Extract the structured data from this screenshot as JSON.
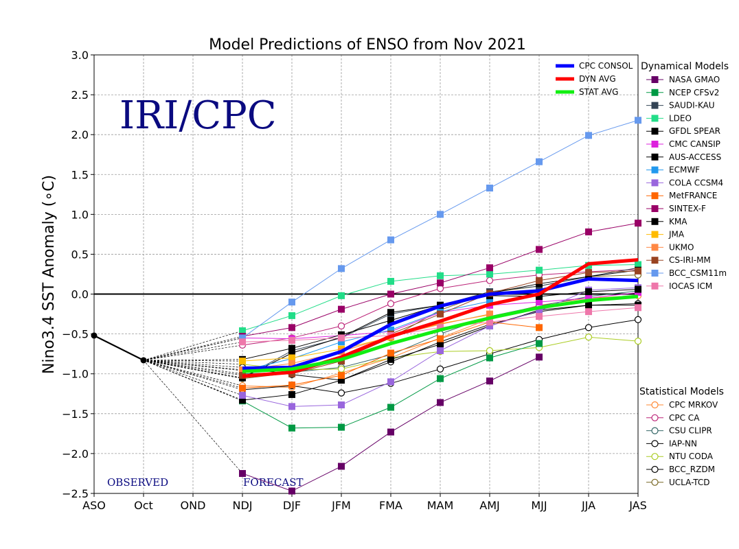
{
  "chart_data": {
    "type": "line",
    "title": "Model Predictions of ENSO from Nov 2021",
    "ylabel": "Nino3.4 SST Anomaly (∘C)",
    "watermark": "IRI/CPC",
    "observed_label": "OBSERVED",
    "forecast_label": "FORECAST",
    "categories": [
      "ASO",
      "Oct",
      "OND",
      "NDJ",
      "DJF",
      "JFM",
      "FMA",
      "MAM",
      "AMJ",
      "MJJ",
      "JJA",
      "JAS"
    ],
    "ylim": [
      -2.5,
      3.0
    ],
    "yticks": [
      -2.5,
      -2.0,
      -1.5,
      -1.0,
      -0.5,
      0.0,
      0.5,
      1.0,
      1.5,
      2.0,
      2.5,
      3.0
    ],
    "ytick_labels": [
      "−2.5",
      "−2.0",
      "−1.5",
      "−1.0",
      "−0.5",
      "0.0",
      "0.5",
      "1.0",
      "1.5",
      "2.0",
      "2.5",
      "3.0"
    ],
    "grid": true,
    "observed": {
      "values": [
        -0.52,
        -0.83
      ],
      "color": "#000000"
    },
    "averages_legend_position": "top-right",
    "averages": [
      {
        "name": "CPC CONSOL",
        "color": "#0000ff",
        "values": [
          -0.93,
          -0.92,
          -0.72,
          -0.38,
          -0.15,
          0.0,
          0.04,
          0.19,
          0.17
        ]
      },
      {
        "name": "DYN AVG",
        "color": "#ff0000",
        "values": [
          -1.03,
          -0.98,
          -0.79,
          -0.53,
          -0.34,
          -0.13,
          0.0,
          0.38,
          0.43
        ]
      },
      {
        "name": "STAT AVG",
        "color": "#11ee11",
        "values": [
          -0.97,
          -0.94,
          -0.82,
          -0.62,
          -0.45,
          -0.3,
          -0.17,
          -0.08,
          -0.03
        ]
      }
    ],
    "dynamical_title": "Dynamical Models",
    "dynamical": [
      {
        "name": "NASA GMAO",
        "color": "#660066",
        "values": [
          -2.25,
          -2.47,
          -2.16,
          -1.73,
          -1.36,
          -1.09,
          -0.79
        ]
      },
      {
        "name": "NCEP CFSv2",
        "color": "#009944",
        "values": [
          -1.34,
          -1.68,
          -1.67,
          -1.42,
          -1.06,
          -0.8,
          -0.62
        ]
      },
      {
        "name": "SAUDI-KAU",
        "color": "#334455",
        "values": [
          -1.05,
          -0.71,
          -0.55,
          -0.25,
          -0.14,
          0.03,
          0.1,
          0.22,
          0.33
        ]
      },
      {
        "name": "LDEO",
        "color": "#22dd88",
        "values": [
          -0.46,
          -0.27,
          -0.02,
          0.16,
          0.23,
          0.25,
          0.3,
          0.36,
          0.37
        ]
      },
      {
        "name": "GFDL SPEAR",
        "color": "#000000",
        "values": [
          -1.05,
          -0.74,
          -0.54,
          -0.23,
          -0.14,
          0.01,
          0.13,
          0.22,
          0.3
        ]
      },
      {
        "name": "CMC CANSIP",
        "color": "#dd22dd",
        "values": [
          -0.55,
          -0.56,
          -0.52,
          -0.47,
          -0.23,
          -0.14,
          -0.1,
          -0.05,
          0.02
        ]
      },
      {
        "name": "AUS-ACCESS",
        "color": "#000000",
        "values": [
          -1.33,
          -1.26,
          -1.08,
          -0.82,
          -0.63,
          -0.4,
          -0.2,
          -0.14,
          -0.14
        ]
      },
      {
        "name": "ECMWF",
        "color": "#2299ee",
        "values": [
          -0.96,
          -0.81,
          -0.6,
          -0.45,
          -0.22,
          -0.09
        ]
      },
      {
        "name": "COLA CCSM4",
        "color": "#9966dd",
        "values": [
          -1.27,
          -1.41,
          -1.39,
          -1.1,
          -0.71,
          -0.4,
          -0.21,
          0.05,
          0.08
        ]
      },
      {
        "name": "MetFRANCE",
        "color": "#ff6600",
        "values": [
          -1.18,
          -1.14,
          -1.02,
          -0.74,
          -0.56,
          -0.35,
          -0.42
        ]
      },
      {
        "name": "SINTEX-F",
        "color": "#990066",
        "values": [
          -0.53,
          -0.42,
          -0.19,
          0.0,
          0.14,
          0.33,
          0.56,
          0.78,
          0.89
        ]
      },
      {
        "name": "KMA",
        "color": "#000000",
        "values": [
          -0.82,
          -0.68,
          -0.51,
          -0.33,
          -0.14,
          -0.02,
          -0.03,
          0.03,
          0.06
        ]
      },
      {
        "name": "JMA",
        "color": "#ffbb00",
        "values": [
          -0.84,
          -0.8,
          -0.69,
          -0.54,
          -0.37,
          -0.26
        ]
      },
      {
        "name": "UKMO",
        "color": "#ff8844",
        "values": [
          -0.95,
          -0.87,
          -0.72,
          -0.53,
          -0.38,
          -0.25
        ]
      },
      {
        "name": "CS-IRI-MM",
        "color": "#994422",
        "values": [
          -1.02,
          -1.0,
          -0.84,
          -0.5,
          -0.25,
          0.01,
          0.17,
          0.27,
          0.29
        ]
      },
      {
        "name": "BCC_CSM11m",
        "color": "#6699ee",
        "values": [
          -0.55,
          -0.1,
          0.32,
          0.68,
          1.0,
          1.33,
          1.66,
          1.99,
          2.18
        ]
      },
      {
        "name": "IOCAS ICM",
        "color": "#ee77aa",
        "values": [
          -0.6,
          -0.58,
          -0.55,
          -0.52,
          -0.42,
          -0.35,
          -0.28,
          -0.22,
          -0.17
        ]
      }
    ],
    "statistical_title": "Statistical Models",
    "statistical": [
      {
        "name": "CPC MRKOV",
        "color": "#ff8833",
        "values": [
          -1.15,
          -1.17,
          -0.99,
          -0.8,
          -0.55,
          -0.31,
          -0.14,
          -0.05,
          -0.02
        ]
      },
      {
        "name": "CPC CA",
        "color": "#bb2277",
        "values": [
          -0.64,
          -0.55,
          -0.4,
          -0.12,
          0.07,
          0.17,
          0.24,
          0.28,
          0.31
        ]
      },
      {
        "name": "CSU CLIPR",
        "color": "#336666",
        "values": [
          -1.0,
          -0.98,
          -0.92,
          -0.76,
          -0.5,
          -0.28,
          -0.15,
          -0.03,
          0.04
        ]
      },
      {
        "name": "IAP-NN",
        "color": "#000000",
        "values": [
          -1.2,
          -1.15,
          -1.24,
          -1.12,
          -0.94,
          -0.75,
          -0.57,
          -0.42,
          -0.32
        ]
      },
      {
        "name": "NTU CODA",
        "color": "#aacc22",
        "values": [
          -0.88,
          -0.95,
          -0.94,
          -0.8,
          -0.72,
          -0.71,
          -0.67,
          -0.54,
          -0.59
        ]
      },
      {
        "name": "BCC_RZDM",
        "color": "#000000",
        "values": [
          -0.92,
          -1.01,
          -1.08,
          -0.85,
          -0.6,
          -0.38,
          -0.22,
          -0.14,
          -0.12
        ]
      },
      {
        "name": "UCLA-TCD",
        "color": "#776622",
        "values": [
          -1.06,
          -0.99,
          -0.82,
          -0.55,
          -0.2,
          0.02,
          0.1,
          0.22,
          0.24
        ]
      }
    ]
  }
}
